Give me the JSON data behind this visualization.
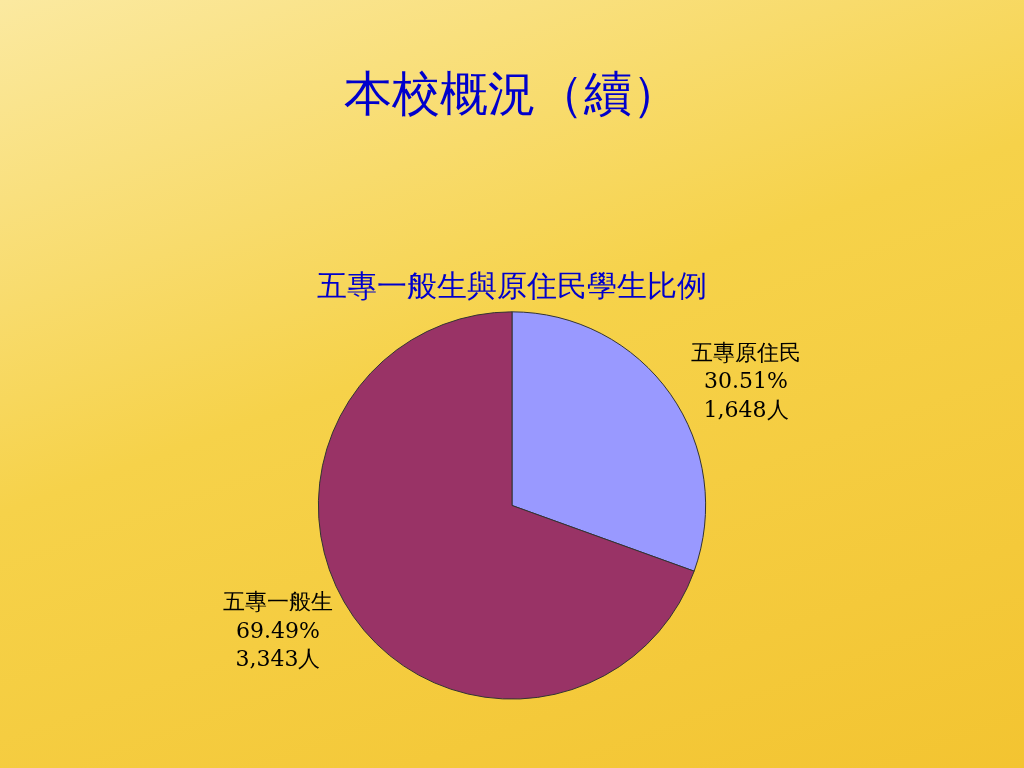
{
  "chart_data": {
    "type": "pie",
    "title": "本校概況（續）",
    "subtitle": "五專一般生與原住民學生比例",
    "categories": [
      "五專原住民",
      "五專一般生"
    ],
    "values": [
      30.51,
      69.49
    ],
    "colors": [
      "#9999ff",
      "#993366"
    ],
    "value_labels": [
      "30.51%\n1,648人",
      "69.49%\n3,343人"
    ],
    "legend": false
  }
}
